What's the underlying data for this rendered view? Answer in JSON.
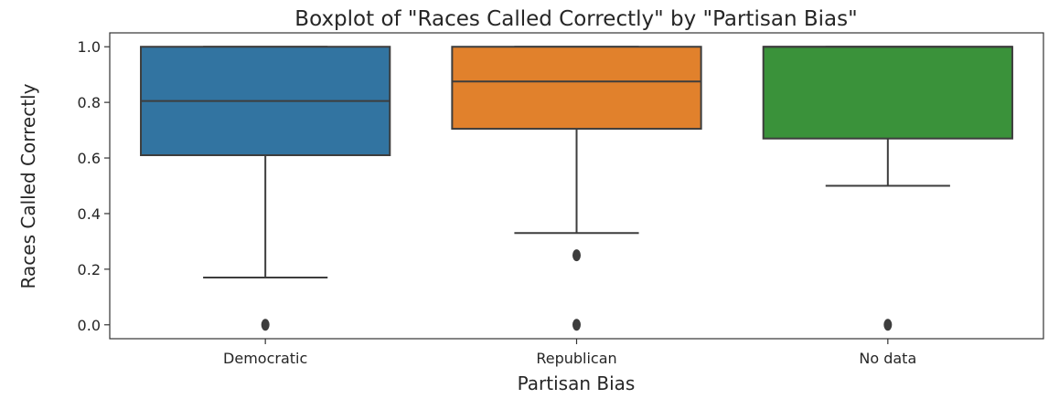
{
  "chart_data": {
    "type": "boxplot",
    "title": "Boxplot of \"Races Called Correctly\" by \"Partisan Bias\"",
    "xlabel": "Partisan Bias",
    "ylabel": "Races Called Correctly",
    "ylim": [
      -0.05,
      1.05
    ],
    "yticks": [
      0.0,
      0.2,
      0.4,
      0.6,
      0.8,
      1.0
    ],
    "ytick_labels": [
      "0.0",
      "0.2",
      "0.4",
      "0.6",
      "0.8",
      "1.0"
    ],
    "categories": [
      "Democratic",
      "Republican",
      "No data"
    ],
    "grid": false,
    "legend": "none",
    "series": [
      {
        "category": "Democratic",
        "color": "#3274a1",
        "whisker_low": 0.17,
        "q1": 0.61,
        "median": 0.805,
        "q3": 1.0,
        "whisker_high": 1.0,
        "outliers": [
          0.0
        ]
      },
      {
        "category": "Republican",
        "color": "#e1812c",
        "whisker_low": 0.33,
        "q1": 0.705,
        "median": 0.875,
        "q3": 1.0,
        "whisker_high": 1.0,
        "outliers": [
          0.25,
          0.0
        ]
      },
      {
        "category": "No data",
        "color": "#3a923a",
        "whisker_low": 0.5,
        "q1": 0.67,
        "median": 1.0,
        "q3": 1.0,
        "whisker_high": 1.0,
        "outliers": [
          0.0
        ]
      }
    ]
  }
}
